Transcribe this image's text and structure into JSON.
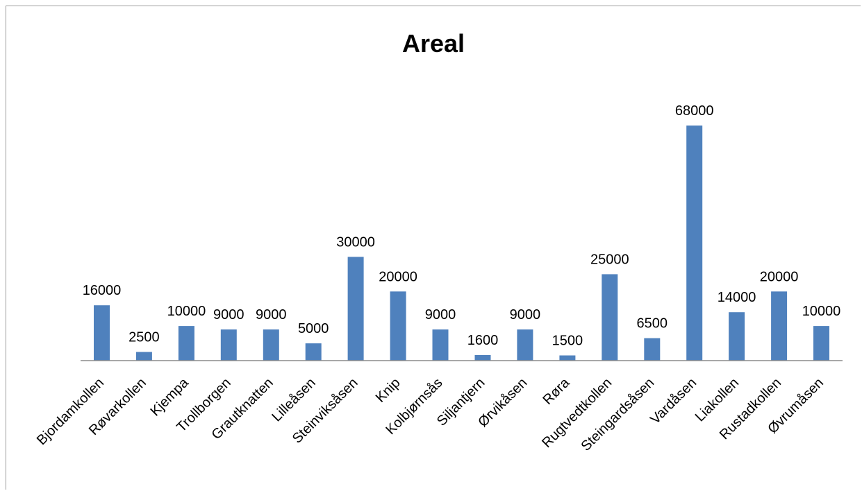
{
  "chart_data": {
    "type": "bar",
    "title": "Areal",
    "categories": [
      "Bjordamkollen",
      "Røvarkollen",
      "Kjempa",
      "Trollborgen",
      "Grautknatten",
      "Lilleåsen",
      "Steinviksåsen",
      "Knip",
      "Kolbjørnsås",
      "Siljantjern",
      "Ørvikåsen",
      "Røra",
      "Rugtvedtkollen",
      "Steingardsåsen",
      "Vardåsen",
      "Liakollen",
      "Rustadkollen",
      "Øvrumåsen"
    ],
    "values": [
      16000,
      2500,
      10000,
      9000,
      9000,
      5000,
      30000,
      20000,
      9000,
      1600,
      9000,
      1500,
      25000,
      6500,
      68000,
      14000,
      20000,
      10000
    ],
    "data_labels": [
      "16000",
      "2500",
      "10000",
      "9000",
      "9000",
      "5000",
      "30000",
      "20000",
      "9000",
      "1600",
      "9000",
      "1500",
      "25000",
      "6500",
      "68000",
      "14000",
      "20000",
      "10000"
    ],
    "xlabel": "",
    "ylabel": "",
    "ylim": [
      0,
      68000
    ],
    "legend": "none",
    "grid": false,
    "value_axis_visible": false,
    "colors": {
      "bar": "#4f81bd",
      "axis": "#8c8c8c",
      "frame": "#9a9a9a"
    }
  }
}
